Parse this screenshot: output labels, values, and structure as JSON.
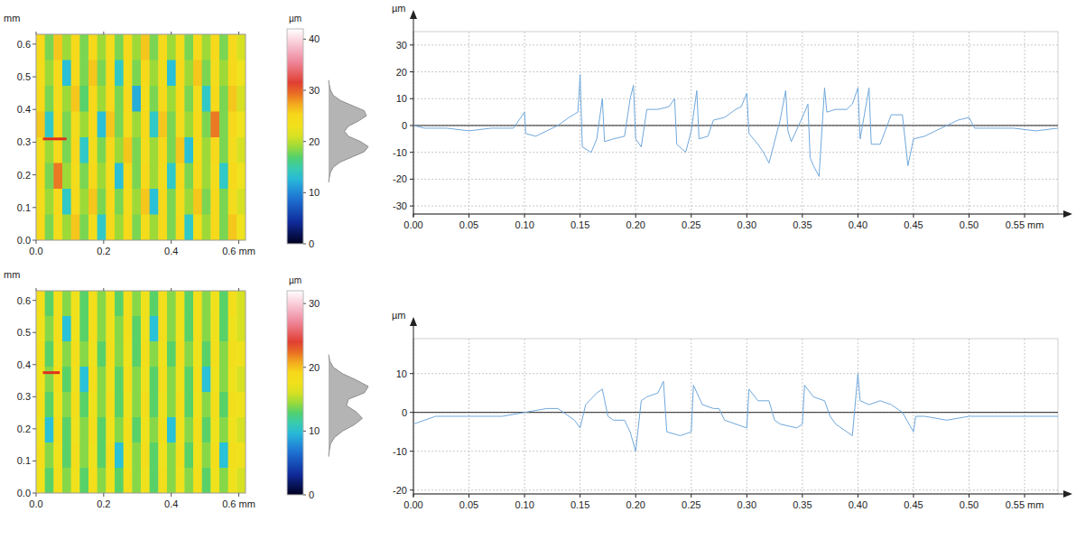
{
  "chart_data": [
    {
      "type": "heatmap",
      "y_label": "mm",
      "xlim": [
        0,
        0.62
      ],
      "ylim": [
        0,
        0.63
      ],
      "xticks": [
        {
          "value": 0,
          "label": "0.0"
        },
        {
          "value": 0.2,
          "label": "0.2"
        },
        {
          "value": 0.4,
          "label": "0.4"
        },
        {
          "value": 0.6,
          "label": "0.6 mm"
        }
      ],
      "yticks": [
        {
          "value": 0,
          "label": "0.0"
        },
        0.1,
        0.2,
        0.3,
        0.4,
        0.5,
        0.6
      ],
      "cells": [
        [
          25,
          18,
          26,
          19,
          25,
          18,
          25,
          19,
          24,
          18,
          25,
          19,
          26,
          18,
          25,
          19,
          24,
          18,
          25,
          19,
          25,
          18,
          25,
          21
        ],
        [
          24,
          19,
          25,
          13,
          25,
          18,
          26,
          18,
          25,
          14,
          24,
          18,
          25,
          19,
          24,
          13,
          25,
          19,
          26,
          18,
          24,
          19,
          25,
          22
        ],
        [
          25,
          18,
          24,
          19,
          26,
          17,
          25,
          19,
          25,
          18,
          25,
          12,
          24,
          18,
          25,
          19,
          25,
          18,
          24,
          14,
          25,
          18,
          26,
          21
        ],
        [
          26,
          14,
          25,
          18,
          24,
          19,
          25,
          13,
          26,
          18,
          24,
          19,
          25,
          14,
          26,
          18,
          24,
          19,
          25,
          18,
          29,
          18,
          25,
          22
        ],
        [
          24,
          19,
          25,
          18,
          25,
          14,
          24,
          18,
          25,
          19,
          26,
          18,
          24,
          19,
          25,
          18,
          26,
          13,
          24,
          19,
          25,
          18,
          24,
          21
        ],
        [
          25,
          18,
          29,
          19,
          24,
          18,
          25,
          19,
          24,
          13,
          25,
          18,
          25,
          19,
          24,
          14,
          25,
          18,
          25,
          19,
          24,
          14,
          25,
          22
        ],
        [
          24,
          19,
          25,
          14,
          25,
          19,
          26,
          18,
          25,
          18,
          24,
          19,
          26,
          13,
          25,
          18,
          24,
          19,
          26,
          18,
          25,
          18,
          24,
          21
        ],
        [
          25,
          18,
          24,
          19,
          26,
          18,
          24,
          14,
          25,
          19,
          25,
          18,
          24,
          19,
          25,
          18,
          25,
          14,
          24,
          19,
          25,
          18,
          26,
          22
        ]
      ],
      "colorbar": {
        "label": "µm",
        "lim": [
          0,
          42
        ],
        "ticks": [
          0,
          10,
          20,
          30,
          40
        ]
      },
      "histogram": {
        "z": [
          12,
          13,
          14,
          15,
          16,
          17,
          18,
          19,
          20,
          21,
          22,
          23,
          24,
          25,
          26,
          27,
          28,
          29,
          30,
          31,
          32
        ],
        "counts": [
          0,
          0.02,
          0.05,
          0.12,
          0.3,
          0.6,
          0.9,
          1.0,
          0.8,
          0.5,
          0.4,
          0.5,
          0.75,
          0.95,
          0.9,
          0.6,
          0.3,
          0.12,
          0.05,
          0.02,
          0
        ]
      },
      "profile_line": {
        "x": [
          0.02,
          0.09
        ],
        "y": [
          0.31,
          0.31
        ],
        "color": "#e0301e"
      }
    },
    {
      "type": "line",
      "y_label": "µm",
      "xlim": [
        0,
        0.58
      ],
      "ylim": [
        -33,
        35
      ],
      "grid": true,
      "color": "#6fa8dc",
      "xticks": [
        {
          "value": 0,
          "label": "0.00"
        },
        {
          "value": 0.05,
          "label": "0.05"
        },
        {
          "value": 0.1,
          "label": "0.10"
        },
        {
          "value": 0.15,
          "label": "0.15"
        },
        {
          "value": 0.2,
          "label": "0.20"
        },
        {
          "value": 0.25,
          "label": "0.25"
        },
        {
          "value": 0.3,
          "label": "0.30"
        },
        {
          "value": 0.35,
          "label": "0.35"
        },
        {
          "value": 0.4,
          "label": "0.40"
        },
        {
          "value": 0.45,
          "label": "0.45"
        },
        {
          "value": 0.5,
          "label": "0.50"
        },
        {
          "value": 0.55,
          "label": "0.55 mm"
        }
      ],
      "yticks": [
        -30,
        -20,
        -10,
        0,
        10,
        20,
        30
      ],
      "x": [
        0,
        0.01,
        0.03,
        0.05,
        0.07,
        0.09,
        0.1,
        0.101,
        0.11,
        0.12,
        0.13,
        0.14,
        0.148,
        0.15,
        0.152,
        0.16,
        0.165,
        0.17,
        0.172,
        0.18,
        0.19,
        0.195,
        0.198,
        0.2,
        0.205,
        0.21,
        0.22,
        0.23,
        0.235,
        0.237,
        0.245,
        0.25,
        0.255,
        0.257,
        0.265,
        0.27,
        0.28,
        0.29,
        0.295,
        0.3,
        0.302,
        0.31,
        0.315,
        0.32,
        0.325,
        0.33,
        0.335,
        0.337,
        0.34,
        0.35,
        0.355,
        0.357,
        0.36,
        0.365,
        0.37,
        0.372,
        0.38,
        0.39,
        0.395,
        0.4,
        0.402,
        0.41,
        0.412,
        0.42,
        0.43,
        0.44,
        0.445,
        0.45,
        0.46,
        0.47,
        0.48,
        0.49,
        0.5,
        0.505,
        0.52,
        0.54,
        0.56,
        0.58
      ],
      "values": [
        0,
        -1,
        -1,
        -2,
        -1,
        -1,
        5,
        -3,
        -4,
        -2,
        0,
        3,
        5,
        19,
        -8,
        -10,
        -5,
        10,
        -6,
        -5,
        -4,
        10,
        15,
        -5,
        -8,
        6,
        6,
        7,
        10,
        -7,
        -10,
        -2,
        13,
        -5,
        -4,
        2,
        3,
        6,
        7,
        12,
        -3,
        -7,
        -10,
        -14,
        -6,
        2,
        13,
        -2,
        -6,
        3,
        8,
        -12,
        -15,
        -19,
        14,
        5,
        6,
        6,
        8,
        14,
        -5,
        14,
        -7,
        -7,
        4,
        4,
        -15,
        -5,
        -4,
        -2,
        0,
        2,
        3,
        -1,
        -1,
        -1,
        -2,
        -1
      ]
    },
    {
      "type": "heatmap",
      "y_label": "mm",
      "xlim": [
        0,
        0.62
      ],
      "ylim": [
        0,
        0.63
      ],
      "xticks": [
        {
          "value": 0,
          "label": "0.0"
        },
        {
          "value": 0.2,
          "label": "0.2"
        },
        {
          "value": 0.4,
          "label": "0.4"
        },
        {
          "value": 0.6,
          "label": "0.6 mm"
        }
      ],
      "yticks": [
        {
          "value": 0,
          "label": "0.0"
        },
        0.1,
        0.2,
        0.3,
        0.4,
        0.5,
        0.6
      ],
      "cells": [
        [
          18,
          13,
          18,
          14,
          17,
          13,
          18,
          14,
          17,
          13,
          18,
          14,
          17,
          13,
          18,
          14,
          17,
          13,
          18,
          14,
          17,
          13,
          18,
          16
        ],
        [
          17,
          14,
          18,
          10,
          17,
          13,
          18,
          14,
          17,
          14,
          18,
          13,
          17,
          10,
          18,
          14,
          17,
          13,
          18,
          14,
          17,
          13,
          17,
          16
        ],
        [
          18,
          13,
          17,
          14,
          18,
          14,
          17,
          13,
          18,
          14,
          17,
          13,
          18,
          14,
          17,
          13,
          18,
          14,
          17,
          13,
          18,
          14,
          18,
          17
        ],
        [
          17,
          14,
          18,
          13,
          17,
          10,
          18,
          14,
          17,
          13,
          18,
          14,
          17,
          13,
          18,
          14,
          17,
          13,
          18,
          10,
          17,
          14,
          17,
          16
        ],
        [
          18,
          13,
          17,
          14,
          18,
          13,
          17,
          14,
          18,
          13,
          17,
          14,
          18,
          13,
          17,
          14,
          18,
          13,
          17,
          14,
          18,
          13,
          18,
          17
        ],
        [
          17,
          10,
          18,
          13,
          17,
          14,
          18,
          13,
          17,
          14,
          18,
          13,
          17,
          14,
          18,
          10,
          17,
          14,
          18,
          13,
          17,
          14,
          17,
          16
        ],
        [
          18,
          14,
          17,
          13,
          18,
          14,
          17,
          13,
          18,
          10,
          17,
          14,
          18,
          13,
          17,
          14,
          18,
          13,
          17,
          14,
          18,
          10,
          18,
          17
        ],
        [
          17,
          13,
          18,
          14,
          17,
          13,
          18,
          14,
          17,
          13,
          18,
          14,
          17,
          13,
          18,
          14,
          17,
          14,
          18,
          13,
          17,
          14,
          17,
          16
        ]
      ],
      "colorbar": {
        "label": "µm",
        "lim": [
          0,
          32
        ],
        "ticks": [
          0,
          10,
          20,
          30
        ]
      },
      "histogram": {
        "z": [
          6,
          7,
          8,
          9,
          10,
          11,
          12,
          13,
          14,
          15,
          16,
          17,
          18,
          19,
          20,
          21,
          22
        ],
        "counts": [
          0,
          0.02,
          0.05,
          0.15,
          0.35,
          0.65,
          0.85,
          0.7,
          0.45,
          0.5,
          0.9,
          1.0,
          0.7,
          0.35,
          0.12,
          0.03,
          0
        ]
      },
      "profile_line": {
        "x": [
          0.02,
          0.07
        ],
        "y": [
          0.375,
          0.375
        ],
        "color": "#e0301e"
      }
    },
    {
      "type": "line",
      "y_label": "µm",
      "xlim": [
        0,
        0.58
      ],
      "ylim": [
        -21,
        19
      ],
      "grid": true,
      "color": "#6fa8dc",
      "xticks": [
        {
          "value": 0,
          "label": "0.00"
        },
        {
          "value": 0.05,
          "label": "0.05"
        },
        {
          "value": 0.1,
          "label": "0.10"
        },
        {
          "value": 0.15,
          "label": "0.15"
        },
        {
          "value": 0.2,
          "label": "0.20"
        },
        {
          "value": 0.25,
          "label": "0.25"
        },
        {
          "value": 0.3,
          "label": "0.30"
        },
        {
          "value": 0.35,
          "label": "0.35"
        },
        {
          "value": 0.4,
          "label": "0.40"
        },
        {
          "value": 0.45,
          "label": "0.45"
        },
        {
          "value": 0.5,
          "label": "0.50"
        },
        {
          "value": 0.55,
          "label": "0.55 mm"
        }
      ],
      "yticks": [
        -20,
        -10,
        0,
        10
      ],
      "x": [
        0,
        0.02,
        0.05,
        0.08,
        0.1,
        0.12,
        0.13,
        0.145,
        0.15,
        0.155,
        0.165,
        0.17,
        0.175,
        0.18,
        0.19,
        0.195,
        0.2,
        0.205,
        0.21,
        0.22,
        0.225,
        0.228,
        0.24,
        0.25,
        0.252,
        0.26,
        0.27,
        0.275,
        0.28,
        0.29,
        0.3,
        0.302,
        0.31,
        0.32,
        0.325,
        0.33,
        0.345,
        0.35,
        0.352,
        0.36,
        0.37,
        0.375,
        0.38,
        0.39,
        0.395,
        0.4,
        0.402,
        0.41,
        0.42,
        0.43,
        0.44,
        0.45,
        0.452,
        0.46,
        0.48,
        0.5,
        0.52,
        0.55,
        0.58
      ],
      "values": [
        -3,
        -1,
        -1,
        -1,
        0,
        1,
        1,
        -2,
        -4,
        2,
        5,
        6,
        -1,
        -2,
        -2,
        -5,
        -10,
        3,
        4,
        5,
        8,
        -5,
        -6,
        -5,
        7,
        2,
        1,
        1,
        -2,
        -3,
        -4,
        6,
        3,
        3,
        -2,
        -3,
        -4,
        -3,
        7,
        4,
        3,
        -1,
        -3,
        -5,
        -6,
        10,
        3,
        2,
        3,
        2,
        0,
        -5,
        -1,
        -1,
        -2,
        -1,
        -1,
        -1,
        -1
      ]
    }
  ]
}
